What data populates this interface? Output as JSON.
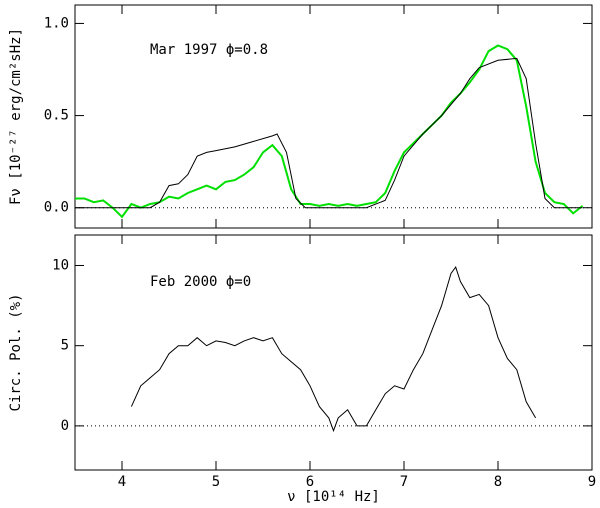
{
  "chart_data": [
    {
      "type": "line",
      "ylabel": "Fν [10⁻²⁷ erg/cm²sHz]",
      "annotation": "Mar 1997 ϕ=0.8",
      "xlim": [
        3.5,
        9
      ],
      "ylim": [
        -0.11,
        1.1
      ],
      "yticks": [
        {
          "value": 0,
          "label": "0.0"
        },
        0.5,
        {
          "value": 1,
          "label": "1.0"
        }
      ],
      "reference_line": 0,
      "series": [
        {
          "color": "#00e000",
          "x": [
            3.5,
            3.6,
            3.7,
            3.8,
            3.9,
            4.0,
            4.1,
            4.2,
            4.3,
            4.4,
            4.5,
            4.6,
            4.7,
            4.8,
            4.9,
            5.0,
            5.1,
            5.2,
            5.3,
            5.4,
            5.5,
            5.6,
            5.7,
            5.8,
            5.9,
            6.0,
            6.1,
            6.2,
            6.3,
            6.4,
            6.5,
            6.6,
            6.7,
            6.8,
            6.9,
            7.0,
            7.1,
            7.2,
            7.3,
            7.4,
            7.5,
            7.6,
            7.7,
            7.8,
            7.9,
            8.0,
            8.1,
            8.2,
            8.3,
            8.4,
            8.5,
            8.6,
            8.7,
            8.8,
            8.9
          ],
          "values": [
            0.05,
            0.05,
            0.03,
            0.04,
            0.0,
            -0.05,
            0.02,
            0.0,
            0.02,
            0.03,
            0.06,
            0.05,
            0.08,
            0.1,
            0.12,
            0.1,
            0.14,
            0.15,
            0.18,
            0.22,
            0.3,
            0.34,
            0.28,
            0.1,
            0.02,
            0.02,
            0.01,
            0.02,
            0.01,
            0.02,
            0.01,
            0.02,
            0.03,
            0.08,
            0.2,
            0.3,
            0.35,
            0.4,
            0.45,
            0.5,
            0.57,
            0.62,
            0.68,
            0.75,
            0.85,
            0.88,
            0.86,
            0.8,
            0.55,
            0.25,
            0.08,
            0.03,
            0.02,
            -0.03,
            0.01
          ]
        },
        {
          "color": "#000000",
          "x": [
            3.5,
            4.3,
            4.4,
            4.5,
            4.6,
            4.7,
            4.8,
            4.9,
            5.0,
            5.2,
            5.4,
            5.6,
            5.65,
            5.75,
            5.85,
            5.95,
            6.6,
            6.8,
            6.9,
            7.0,
            7.2,
            7.4,
            7.6,
            7.7,
            7.8,
            8.0,
            8.2,
            8.3,
            8.4,
            8.5,
            8.6,
            8.9
          ],
          "values": [
            0,
            0,
            0.03,
            0.12,
            0.13,
            0.18,
            0.28,
            0.3,
            0.31,
            0.33,
            0.36,
            0.39,
            0.4,
            0.3,
            0.05,
            0,
            0,
            0.04,
            0.15,
            0.28,
            0.4,
            0.5,
            0.62,
            0.7,
            0.76,
            0.8,
            0.81,
            0.7,
            0.35,
            0.05,
            0,
            0
          ]
        }
      ]
    },
    {
      "type": "line",
      "ylabel": "Circ. Pol. (%)",
      "annotation": "Feb 2000 ϕ=0",
      "xlabel": "ν [10¹⁴ Hz]",
      "xlim": [
        3.5,
        9
      ],
      "ylim": [
        -2.75,
        11.9
      ],
      "xticks": [
        4,
        5,
        6,
        7,
        8,
        9
      ],
      "yticks": [
        0,
        5,
        10
      ],
      "reference_line": 0,
      "series": [
        {
          "color": "#000000",
          "x": [
            4.1,
            4.2,
            4.3,
            4.4,
            4.5,
            4.6,
            4.7,
            4.8,
            4.9,
            5.0,
            5.1,
            5.2,
            5.3,
            5.4,
            5.5,
            5.6,
            5.7,
            5.8,
            5.9,
            6.0,
            6.1,
            6.2,
            6.25,
            6.3,
            6.4,
            6.5,
            6.6,
            6.7,
            6.8,
            6.9,
            7.0,
            7.1,
            7.2,
            7.3,
            7.4,
            7.5,
            7.55,
            7.6,
            7.7,
            7.8,
            7.9,
            8.0,
            8.1,
            8.2,
            8.3,
            8.4
          ],
          "values": [
            1.2,
            2.5,
            3.0,
            3.5,
            4.5,
            5.0,
            5.0,
            5.5,
            5.0,
            5.3,
            5.2,
            5.0,
            5.3,
            5.5,
            5.3,
            5.5,
            4.5,
            4.0,
            3.5,
            2.5,
            1.2,
            0.5,
            -0.3,
            0.5,
            1.0,
            0.0,
            0.0,
            1.0,
            2.0,
            2.5,
            2.3,
            3.5,
            4.5,
            6.0,
            7.5,
            9.5,
            9.9,
            9.0,
            8.0,
            8.2,
            7.5,
            5.5,
            4.2,
            3.5,
            1.5,
            0.5
          ]
        }
      ]
    }
  ]
}
